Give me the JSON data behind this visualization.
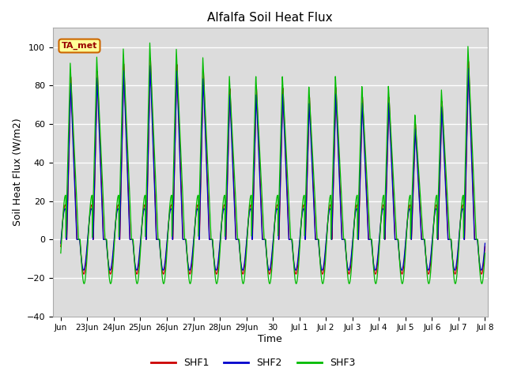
{
  "title": "Alfalfa Soil Heat Flux",
  "xlabel": "Time",
  "ylabel": "Soil Heat Flux (W/m2)",
  "ylim": [
    -40,
    110
  ],
  "yticks": [
    -40,
    -20,
    0,
    20,
    40,
    60,
    80,
    100
  ],
  "background_color": "#ffffff",
  "plot_bg_color": "#dcdcdc",
  "grid_color": "#ffffff",
  "shf1_color": "#cc0000",
  "shf2_color": "#0000cc",
  "shf3_color": "#00bb00",
  "annotation_text": "TA_met",
  "annotation_bg": "#ffff99",
  "annotation_border": "#cc6600",
  "annotation_text_color": "#990000",
  "legend_entries": [
    "SHF1",
    "SHF2",
    "SHF3"
  ],
  "tick_labels": [
    "Jun",
    "23Jun",
    "24Jun",
    "25Jun",
    "26Jun",
    "27Jun",
    "28Jun",
    "29Jun",
    "30",
    "Jul 1",
    "Jul 2",
    "Jul 3",
    "Jul 4",
    "Jul 5",
    "Jul 6",
    "Jul 7",
    "Jul 8"
  ],
  "num_days": 16,
  "time_points": 3840,
  "day_amplitudes": [
    85,
    88,
    92,
    95,
    92,
    88,
    79,
    79,
    79,
    74,
    79,
    74,
    74,
    60,
    72,
    93
  ],
  "shf3_amp_extra": 1.08,
  "night_base": -18,
  "shf3_night_extra": -5
}
